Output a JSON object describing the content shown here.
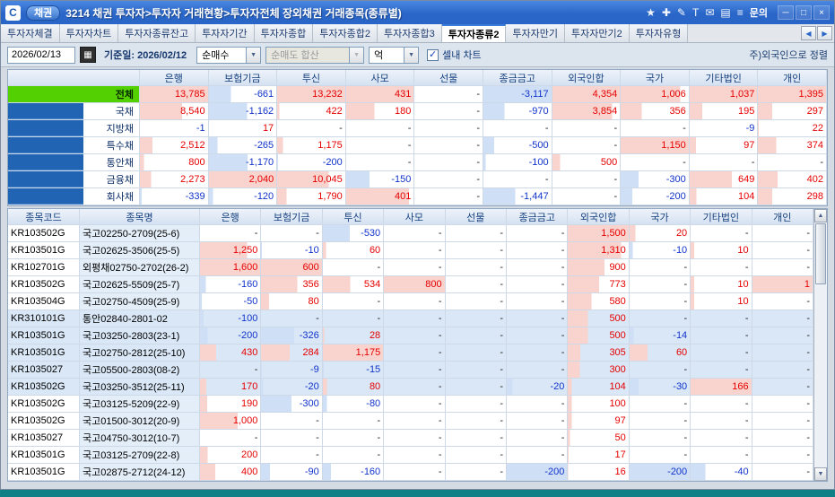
{
  "window": {
    "app_badge": "채권",
    "title": "3214 채권 투자자>투자자 거래현황>투자자전체 장외채권 거래종목(종류별)",
    "inquiry_label": "문의",
    "icons": [
      {
        "name": "favorite-icon",
        "glyph": "★"
      },
      {
        "name": "capture-icon",
        "glyph": "✚"
      },
      {
        "name": "memo-icon",
        "glyph": "✎"
      },
      {
        "name": "font-icon",
        "glyph": "T"
      },
      {
        "name": "mail-icon",
        "glyph": "✉"
      },
      {
        "name": "print-icon",
        "glyph": "▤"
      },
      {
        "name": "menu-icon",
        "glyph": "≡"
      }
    ],
    "window_buttons": [
      {
        "name": "minimize-button",
        "glyph": "─"
      },
      {
        "name": "maximize-button",
        "glyph": "□"
      },
      {
        "name": "close-button",
        "glyph": "×"
      }
    ]
  },
  "tabs": {
    "active": "투자자종류2",
    "items": [
      "투자자체결",
      "투자자차트",
      "투자자종류잔고",
      "투자자기간",
      "투자자종합",
      "투자자종합2",
      "투자자종합3",
      "투자자종류2",
      "투자자만기",
      "투자자만기2",
      "투자자유형"
    ]
  },
  "controls": {
    "date_value": "2026/02/13",
    "base_date": "기준일: 2026/02/12",
    "net_select": "순매수",
    "net_sum_select": "순매도 합산",
    "unit_select": "억",
    "cell_chart_label": "셀내 차트",
    "sort_note": "주)외국인으로 정렬"
  },
  "glyphs": {
    "combo_arrow": "▼",
    "calendar": "▦",
    "check": "✓",
    "scroll_up": "▲",
    "scroll_down": "▼",
    "tab_left": "◀",
    "tab_right": "▶"
  },
  "investor_columns": [
    "은행",
    "보험기금",
    "투신",
    "사모",
    "선물",
    "종금금고",
    "외국인합",
    "국가",
    "기타법인",
    "개인"
  ],
  "summary_table": {
    "rows": [
      {
        "label": "전체",
        "values": [
          13785,
          -661,
          13232,
          431,
          null,
          -3117,
          4354,
          1006,
          1037,
          1395
        ]
      },
      {
        "label": "국채",
        "values": [
          8540,
          -1162,
          422,
          180,
          null,
          -970,
          3854,
          356,
          195,
          297
        ]
      },
      {
        "label": "지방채",
        "values": [
          -1,
          17,
          null,
          null,
          null,
          null,
          null,
          null,
          -9,
          22
        ]
      },
      {
        "label": "특수채",
        "values": [
          2512,
          -265,
          1175,
          null,
          null,
          -500,
          null,
          1150,
          97,
          374
        ]
      },
      {
        "label": "통안채",
        "values": [
          800,
          -1170,
          -200,
          null,
          null,
          -100,
          500,
          null,
          null,
          null
        ]
      },
      {
        "label": "금융채",
        "values": [
          2273,
          2040,
          10045,
          -150,
          null,
          null,
          null,
          -300,
          649,
          402
        ]
      },
      {
        "label": "회사채",
        "values": [
          -339,
          -120,
          1790,
          401,
          null,
          -1447,
          null,
          -200,
          104,
          298
        ]
      }
    ]
  },
  "detail_table": {
    "code_header": "종목코드",
    "name_header": "종목명",
    "rows": [
      {
        "code": "KR103502G",
        "name": "국고02250-2709(25-6)",
        "values": [
          null,
          null,
          -530,
          null,
          null,
          null,
          1500,
          20,
          null,
          null
        ]
      },
      {
        "code": "KR103501G",
        "name": "국고02625-3506(25-5)",
        "values": [
          1250,
          -10,
          60,
          null,
          null,
          null,
          1310,
          -10,
          10,
          null
        ]
      },
      {
        "code": "KR102701G",
        "name": "외평채02750-2702(26-2)",
        "values": [
          1600,
          600,
          null,
          null,
          null,
          null,
          900,
          null,
          null,
          null
        ]
      },
      {
        "code": "KR103502G",
        "name": "국고02625-5509(25-7)",
        "values": [
          -160,
          356,
          534,
          800,
          null,
          null,
          773,
          null,
          10,
          1
        ]
      },
      {
        "code": "KR103504G",
        "name": "국고02750-4509(25-9)",
        "values": [
          -50,
          80,
          null,
          null,
          null,
          null,
          580,
          null,
          10,
          null
        ]
      },
      {
        "code": "KR310101G",
        "name": "통안02840-2801-02",
        "values": [
          -100,
          null,
          null,
          null,
          null,
          null,
          500,
          null,
          null,
          null
        ]
      },
      {
        "code": "KR103501G",
        "name": "국고03250-2803(23-1)",
        "values": [
          -200,
          -326,
          28,
          null,
          null,
          null,
          500,
          -14,
          null,
          null
        ]
      },
      {
        "code": "KR103501G",
        "name": "국고02750-2812(25-10)",
        "values": [
          430,
          284,
          1175,
          null,
          null,
          null,
          305,
          60,
          null,
          null
        ]
      },
      {
        "code": "KR1035027",
        "name": "국고05500-2803(08-2)",
        "values": [
          null,
          -9,
          -15,
          null,
          null,
          null,
          300,
          null,
          null,
          null
        ]
      },
      {
        "code": "KR103502G",
        "name": "국고03250-3512(25-11)",
        "values": [
          170,
          -20,
          80,
          null,
          null,
          -20,
          104,
          -30,
          166,
          null
        ]
      },
      {
        "code": "KR103502G",
        "name": "국고03125-5209(22-9)",
        "values": [
          190,
          -300,
          -80,
          null,
          null,
          null,
          100,
          null,
          null,
          null
        ]
      },
      {
        "code": "KR103502G",
        "name": "국고01500-3012(20-9)",
        "values": [
          1000,
          null,
          null,
          null,
          null,
          null,
          97,
          null,
          null,
          null
        ]
      },
      {
        "code": "KR1035027",
        "name": "국고04750-3012(10-7)",
        "values": [
          null,
          null,
          null,
          null,
          null,
          null,
          50,
          null,
          null,
          null
        ]
      },
      {
        "code": "KR103501G",
        "name": "국고03125-2709(22-8)",
        "values": [
          200,
          null,
          null,
          null,
          null,
          null,
          17,
          null,
          null,
          null
        ]
      },
      {
        "code": "KR103501G",
        "name": "국고02875-2712(24-12)",
        "values": [
          400,
          -90,
          -160,
          null,
          null,
          -200,
          16,
          -200,
          -40,
          null
        ]
      }
    ]
  },
  "colors": {
    "positive_text": "#e60000",
    "negative_text": "#1133cc",
    "bar_positive": "#f9d3cd",
    "bar_negative": "#cfdff6",
    "total_row_bg": "#53d002",
    "accent_blue": "#2164b4",
    "titlebar_blue": "#2a66c8"
  }
}
